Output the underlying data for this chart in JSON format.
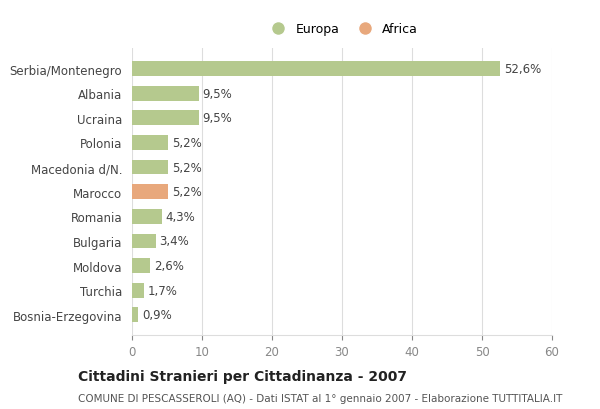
{
  "categories": [
    "Serbia/Montenegro",
    "Albania",
    "Ucraina",
    "Polonia",
    "Macedonia d/N.",
    "Marocco",
    "Romania",
    "Bulgaria",
    "Moldova",
    "Turchia",
    "Bosnia-Erzegovina"
  ],
  "values": [
    52.6,
    9.5,
    9.5,
    5.2,
    5.2,
    5.2,
    4.3,
    3.4,
    2.6,
    1.7,
    0.9
  ],
  "labels": [
    "52,6%",
    "9,5%",
    "9,5%",
    "5,2%",
    "5,2%",
    "5,2%",
    "4,3%",
    "3,4%",
    "2,6%",
    "1,7%",
    "0,9%"
  ],
  "colors": [
    "#b5c98e",
    "#b5c98e",
    "#b5c98e",
    "#b5c98e",
    "#b5c98e",
    "#e8a87c",
    "#b5c98e",
    "#b5c98e",
    "#b5c98e",
    "#b5c98e",
    "#b5c98e"
  ],
  "europa_color": "#b5c98e",
  "africa_color": "#e8a87c",
  "title": "Cittadini Stranieri per Cittadinanza - 2007",
  "subtitle": "COMUNE DI PESCASSEROLI (AQ) - Dati ISTAT al 1° gennaio 2007 - Elaborazione TUTTITALIA.IT",
  "xlim": [
    0,
    60
  ],
  "xticks": [
    0,
    10,
    20,
    30,
    40,
    50,
    60
  ],
  "background_color": "#ffffff",
  "grid_color": "#dddddd"
}
